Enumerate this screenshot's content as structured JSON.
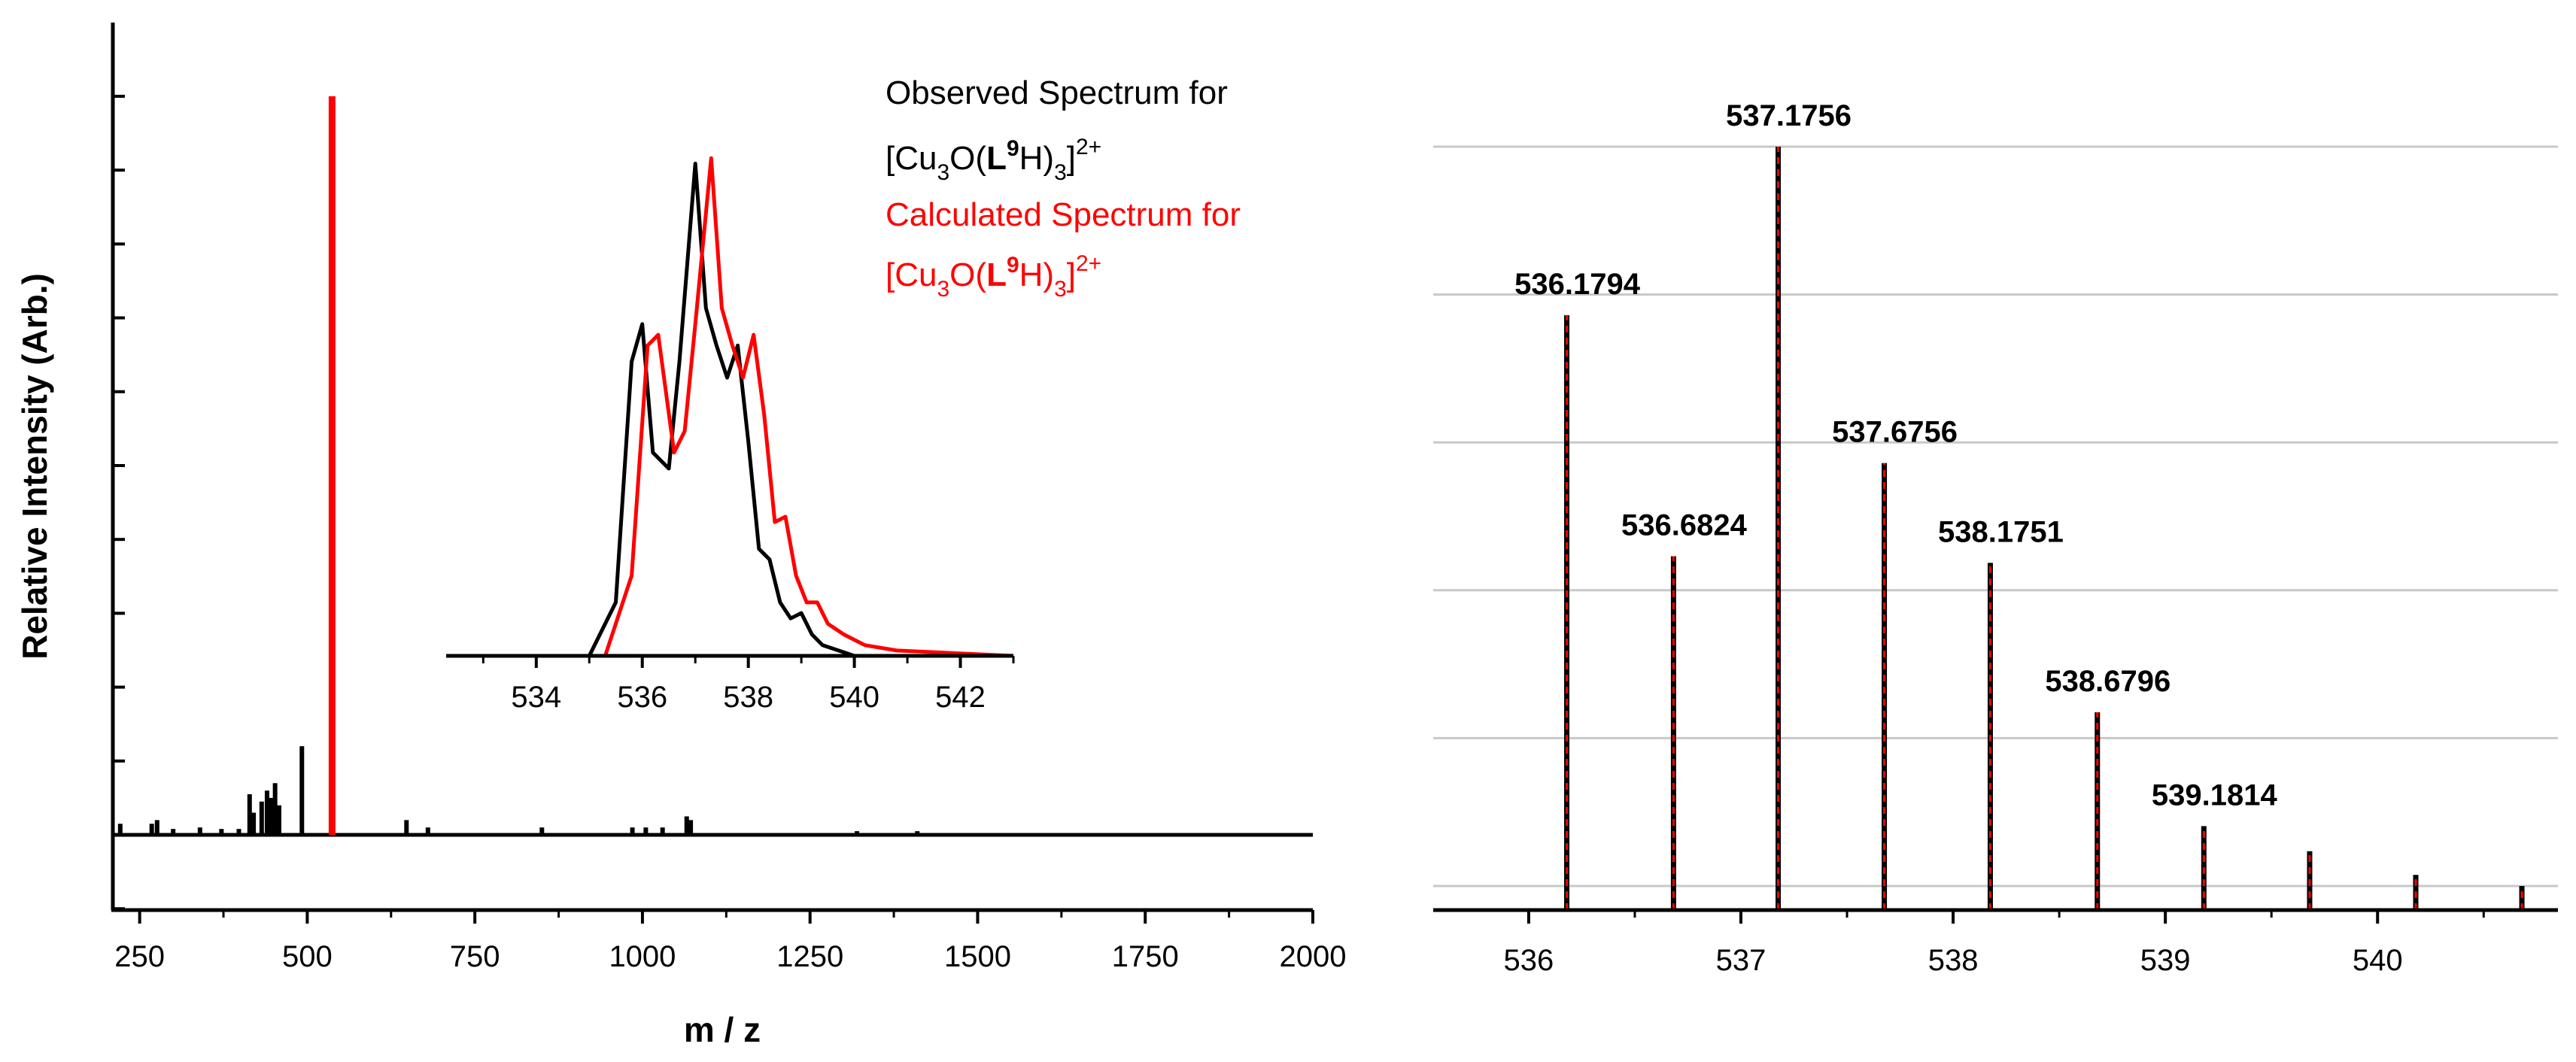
{
  "colors": {
    "observed": "#000000",
    "calculated": "#ff0000",
    "grid": "#c8c8c8"
  },
  "chart_data": [
    {
      "id": "full-spectrum",
      "type": "line",
      "title": "",
      "xlabel": "m / z",
      "ylabel": "Relative Intensity (Arb.)",
      "xlim": [
        210,
        2000
      ],
      "ylim": [
        -0.1,
        1.1
      ],
      "x_ticks": [
        250,
        500,
        750,
        1000,
        1250,
        1500,
        1750,
        2000
      ],
      "x_tick_labels": [
        "250",
        "500",
        "750",
        "1000",
        "1250",
        "1500",
        "1750",
        "2000"
      ],
      "y_tick_labels_shown": false,
      "legend": {
        "position": "top-right",
        "observed": {
          "line1": "Observed Spectrum for",
          "formula_prefix": "[Cu",
          "formula_sub1": "3",
          "formula_mid": "O(",
          "formula_bold": "L",
          "formula_sup1": "9",
          "formula_mid2": "H)",
          "formula_sub2": "3",
          "formula_close": "]",
          "formula_charge": "2+"
        },
        "calculated": {
          "line1": "Calculated Spectrum for",
          "formula_prefix": "[Cu",
          "formula_sub1": "3",
          "formula_mid": "O(",
          "formula_bold": "L",
          "formula_sup1": "9",
          "formula_mid2": "H)",
          "formula_sub2": "3",
          "formula_close": "]",
          "formula_charge": "2+"
        }
      },
      "series": [
        {
          "name": "Observed Spectrum",
          "color": "#000000",
          "peaks": [
            [
              221,
              0.015
            ],
            [
              268,
              0.015
            ],
            [
              276,
              0.02
            ],
            [
              300,
              0.008
            ],
            [
              340,
              0.01
            ],
            [
              372,
              0.008
            ],
            [
              398,
              0.008
            ],
            [
              414,
              0.055
            ],
            [
              420,
              0.03
            ],
            [
              432,
              0.045
            ],
            [
              440,
              0.06
            ],
            [
              446,
              0.05
            ],
            [
              452,
              0.07
            ],
            [
              458,
              0.04
            ],
            [
              492,
              0.12
            ],
            [
              537,
              0.1
            ],
            [
              648,
              0.02
            ],
            [
              680,
              0.01
            ],
            [
              850,
              0.01
            ],
            [
              985,
              0.01
            ],
            [
              1005,
              0.01
            ],
            [
              1030,
              0.01
            ],
            [
              1066,
              0.025
            ],
            [
              1072,
              0.02
            ],
            [
              1320,
              0.005
            ],
            [
              1410,
              0.005
            ]
          ]
        },
        {
          "name": "Calculated Spectrum",
          "color": "#ff0000",
          "peaks": [
            [
              537,
              1.0
            ]
          ]
        }
      ]
    },
    {
      "id": "inset-isotope",
      "type": "line",
      "xlabel": "",
      "ylabel": "",
      "xlim": [
        532.3,
        543
      ],
      "ylim": [
        0,
        1.05
      ],
      "x_ticks": [
        534,
        536,
        538,
        540,
        542
      ],
      "x_tick_labels": [
        "534",
        "536",
        "538",
        "540",
        "542"
      ],
      "series": [
        {
          "name": "Observed",
          "color": "#000000",
          "x": [
            532.3,
            535.0,
            535.5,
            535.8,
            536.0,
            536.2,
            536.5,
            536.7,
            537.0,
            537.2,
            537.4,
            537.6,
            537.8,
            538.0,
            538.2,
            538.4,
            538.6,
            538.8,
            539.0,
            539.2,
            539.4,
            539.7,
            540.0,
            541.0,
            543.0
          ],
          "y": [
            0.0,
            0.0,
            0.1,
            0.55,
            0.62,
            0.38,
            0.35,
            0.55,
            0.92,
            0.65,
            0.58,
            0.52,
            0.58,
            0.4,
            0.2,
            0.18,
            0.1,
            0.07,
            0.08,
            0.04,
            0.02,
            0.01,
            0.0,
            0.0,
            0.0
          ]
        },
        {
          "name": "Calculated",
          "color": "#ff0000",
          "x": [
            532.3,
            535.3,
            535.8,
            536.1,
            536.3,
            536.6,
            536.8,
            537.0,
            537.3,
            537.5,
            537.7,
            537.9,
            538.1,
            538.3,
            538.5,
            538.7,
            538.9,
            539.1,
            539.3,
            539.5,
            539.8,
            540.2,
            540.8,
            543.0
          ],
          "y": [
            0.0,
            0.0,
            0.15,
            0.58,
            0.6,
            0.38,
            0.42,
            0.62,
            0.93,
            0.65,
            0.58,
            0.52,
            0.6,
            0.45,
            0.25,
            0.26,
            0.15,
            0.1,
            0.1,
            0.06,
            0.04,
            0.02,
            0.01,
            0.0
          ]
        }
      ]
    },
    {
      "id": "isotope-pattern",
      "type": "bar",
      "xlabel": "",
      "ylabel": "",
      "xlim": [
        535.55,
        540.85
      ],
      "ylim": [
        0,
        1.1
      ],
      "grid": true,
      "x_ticks": [
        536,
        537,
        538,
        539,
        540
      ],
      "x_tick_labels": [
        "536",
        "537",
        "538",
        "539",
        "540"
      ],
      "peaks": [
        {
          "mz": 536.1794,
          "value": 0.772,
          "label": "536.1794"
        },
        {
          "mz": 536.6824,
          "value": 0.446,
          "label": "536.6824"
        },
        {
          "mz": 537.1756,
          "value": 1.0,
          "label": "537.1756"
        },
        {
          "mz": 537.6756,
          "value": 0.572,
          "label": "537.6756"
        },
        {
          "mz": 538.1751,
          "value": 0.437,
          "label": "538.1751"
        },
        {
          "mz": 538.6796,
          "value": 0.235,
          "label": "538.6796"
        },
        {
          "mz": 539.1814,
          "value": 0.081,
          "label": "539.1814"
        },
        {
          "mz": 539.68,
          "value": 0.047,
          "label": ""
        },
        {
          "mz": 540.18,
          "value": 0.015,
          "label": ""
        },
        {
          "mz": 540.68,
          "value": 0.0,
          "label": ""
        }
      ]
    }
  ]
}
